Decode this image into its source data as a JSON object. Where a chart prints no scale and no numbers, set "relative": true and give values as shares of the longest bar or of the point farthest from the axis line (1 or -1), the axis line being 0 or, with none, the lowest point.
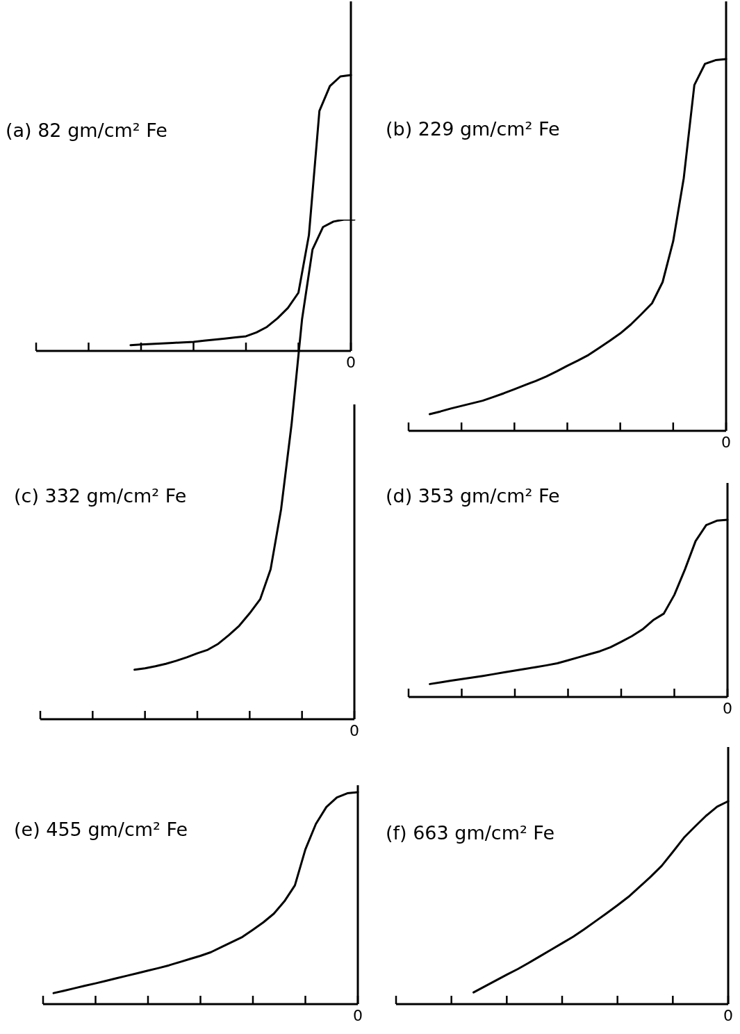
{
  "chart_data": [
    {
      "type": "line",
      "title": "(a) 82 gm/cm² Fe",
      "relative": true,
      "annotations": [
        "0"
      ],
      "grid": false,
      "marker": "none",
      "line_style": "solid",
      "categories": [
        null,
        null,
        null,
        null,
        null,
        null,
        null,
        null,
        null,
        null,
        null,
        null,
        null,
        null,
        null,
        null,
        null,
        null,
        null,
        null,
        null,
        null,
        null,
        null,
        null,
        null,
        null,
        null,
        null,
        null,
        null
      ],
      "series": [
        {
          "color": "#000000",
          "values": [
            null,
            null,
            null,
            null,
            null,
            null,
            null,
            null,
            null,
            0.021,
            0.023,
            0.025,
            0.027,
            0.029,
            0.031,
            0.033,
            0.037,
            0.041,
            0.045,
            0.049,
            0.053,
            0.067,
            0.087,
            0.118,
            0.156,
            0.211,
            0.42,
            0.87,
            0.96,
            0.995,
            1
          ]
        }
      ]
    },
    {
      "type": "line",
      "title": "(b) 229 gm/cm² Fe",
      "relative": true,
      "annotations": [
        "0"
      ],
      "grid": false,
      "marker": "none",
      "line_style": "solid",
      "categories": [
        null,
        null,
        null,
        null,
        null,
        null,
        null,
        null,
        null,
        null,
        null,
        null,
        null,
        null,
        null,
        null,
        null,
        null,
        null,
        null,
        null,
        null,
        null,
        null,
        null,
        null,
        null,
        null,
        null,
        null,
        null
      ],
      "series": [
        {
          "color": "#000000",
          "values": [
            null,
            null,
            0.045,
            0.052,
            0.06,
            0.067,
            0.074,
            0.081,
            0.091,
            0.101,
            0.112,
            0.123,
            0.134,
            0.146,
            0.16,
            0.175,
            0.189,
            0.204,
            0.223,
            0.242,
            0.262,
            0.286,
            0.314,
            0.343,
            0.4,
            0.51,
            0.68,
            0.93,
            0.987,
            0.997,
            1
          ]
        }
      ]
    },
    {
      "type": "line",
      "title": "(c) 332 gm/cm² Fe",
      "relative": true,
      "annotations": [
        "0"
      ],
      "grid": false,
      "marker": "none",
      "line_style": "solid",
      "categories": [
        null,
        null,
        null,
        null,
        null,
        null,
        null,
        null,
        null,
        null,
        null,
        null,
        null,
        null,
        null,
        null,
        null,
        null,
        null,
        null,
        null,
        null,
        null,
        null,
        null,
        null,
        null,
        null,
        null,
        null,
        null
      ],
      "series": [
        {
          "color": "#000000",
          "values": [
            null,
            null,
            null,
            null,
            null,
            null,
            null,
            null,
            null,
            0.099,
            0.102,
            0.106,
            0.111,
            0.117,
            0.124,
            0.132,
            0.139,
            0.151,
            0.168,
            0.187,
            0.212,
            0.24,
            0.3,
            0.42,
            0.59,
            0.8,
            0.94,
            0.985,
            0.996,
            1,
            1
          ]
        }
      ]
    },
    {
      "type": "line",
      "title": "(d) 353 gm/cm² Fe",
      "relative": true,
      "annotations": [
        "0"
      ],
      "grid": false,
      "marker": "none",
      "line_style": "solid",
      "categories": [
        null,
        null,
        null,
        null,
        null,
        null,
        null,
        null,
        null,
        null,
        null,
        null,
        null,
        null,
        null,
        null,
        null,
        null,
        null,
        null,
        null,
        null,
        null,
        null,
        null,
        null,
        null,
        null,
        null,
        null,
        null
      ],
      "series": [
        {
          "color": "#000000",
          "values": [
            null,
            null,
            0.073,
            0.082,
            0.092,
            0.101,
            0.11,
            0.119,
            0.129,
            0.139,
            0.149,
            0.159,
            0.169,
            0.179,
            0.19,
            0.207,
            0.224,
            0.241,
            0.258,
            0.281,
            0.311,
            0.343,
            0.381,
            0.433,
            0.47,
            0.576,
            0.72,
            0.88,
            0.97,
            0.995,
            1
          ]
        }
      ]
    },
    {
      "type": "line",
      "title": "(e) 455 gm/cm² Fe",
      "relative": true,
      "annotations": [
        "0"
      ],
      "grid": false,
      "marker": "none",
      "line_style": "solid",
      "categories": [
        null,
        null,
        null,
        null,
        null,
        null,
        null,
        null,
        null,
        null,
        null,
        null,
        null,
        null,
        null,
        null,
        null,
        null,
        null,
        null,
        null,
        null,
        null,
        null,
        null,
        null,
        null,
        null,
        null,
        null,
        null
      ],
      "series": [
        {
          "color": "#000000",
          "values": [
            null,
            0.052,
            0.063,
            0.075,
            0.087,
            0.098,
            0.11,
            0.122,
            0.134,
            0.146,
            0.158,
            0.17,
            0.183,
            0.198,
            0.213,
            0.228,
            0.245,
            0.269,
            0.293,
            0.317,
            0.351,
            0.386,
            0.427,
            0.485,
            0.56,
            0.73,
            0.85,
            0.93,
            0.975,
            0.995,
            1
          ]
        }
      ]
    },
    {
      "type": "line",
      "title": "(f) 663 gm/cm² Fe",
      "relative": true,
      "annotations": [
        "0"
      ],
      "grid": false,
      "marker": "none",
      "line_style": "solid",
      "categories": [
        null,
        null,
        null,
        null,
        null,
        null,
        null,
        null,
        null,
        null,
        null,
        null,
        null,
        null,
        null,
        null,
        null,
        null,
        null,
        null,
        null,
        null,
        null,
        null,
        null,
        null,
        null,
        null,
        null,
        null,
        null
      ],
      "series": [
        {
          "color": "#000000",
          "values": [
            null,
            null,
            null,
            null,
            null,
            null,
            null,
            0.058,
            0.087,
            0.116,
            0.145,
            0.173,
            0.204,
            0.236,
            0.268,
            0.3,
            0.332,
            0.369,
            0.408,
            0.447,
            0.487,
            0.529,
            0.578,
            0.628,
            0.682,
            0.75,
            0.82,
            0.875,
            0.928,
            0.973,
            1
          ]
        }
      ]
    }
  ]
}
